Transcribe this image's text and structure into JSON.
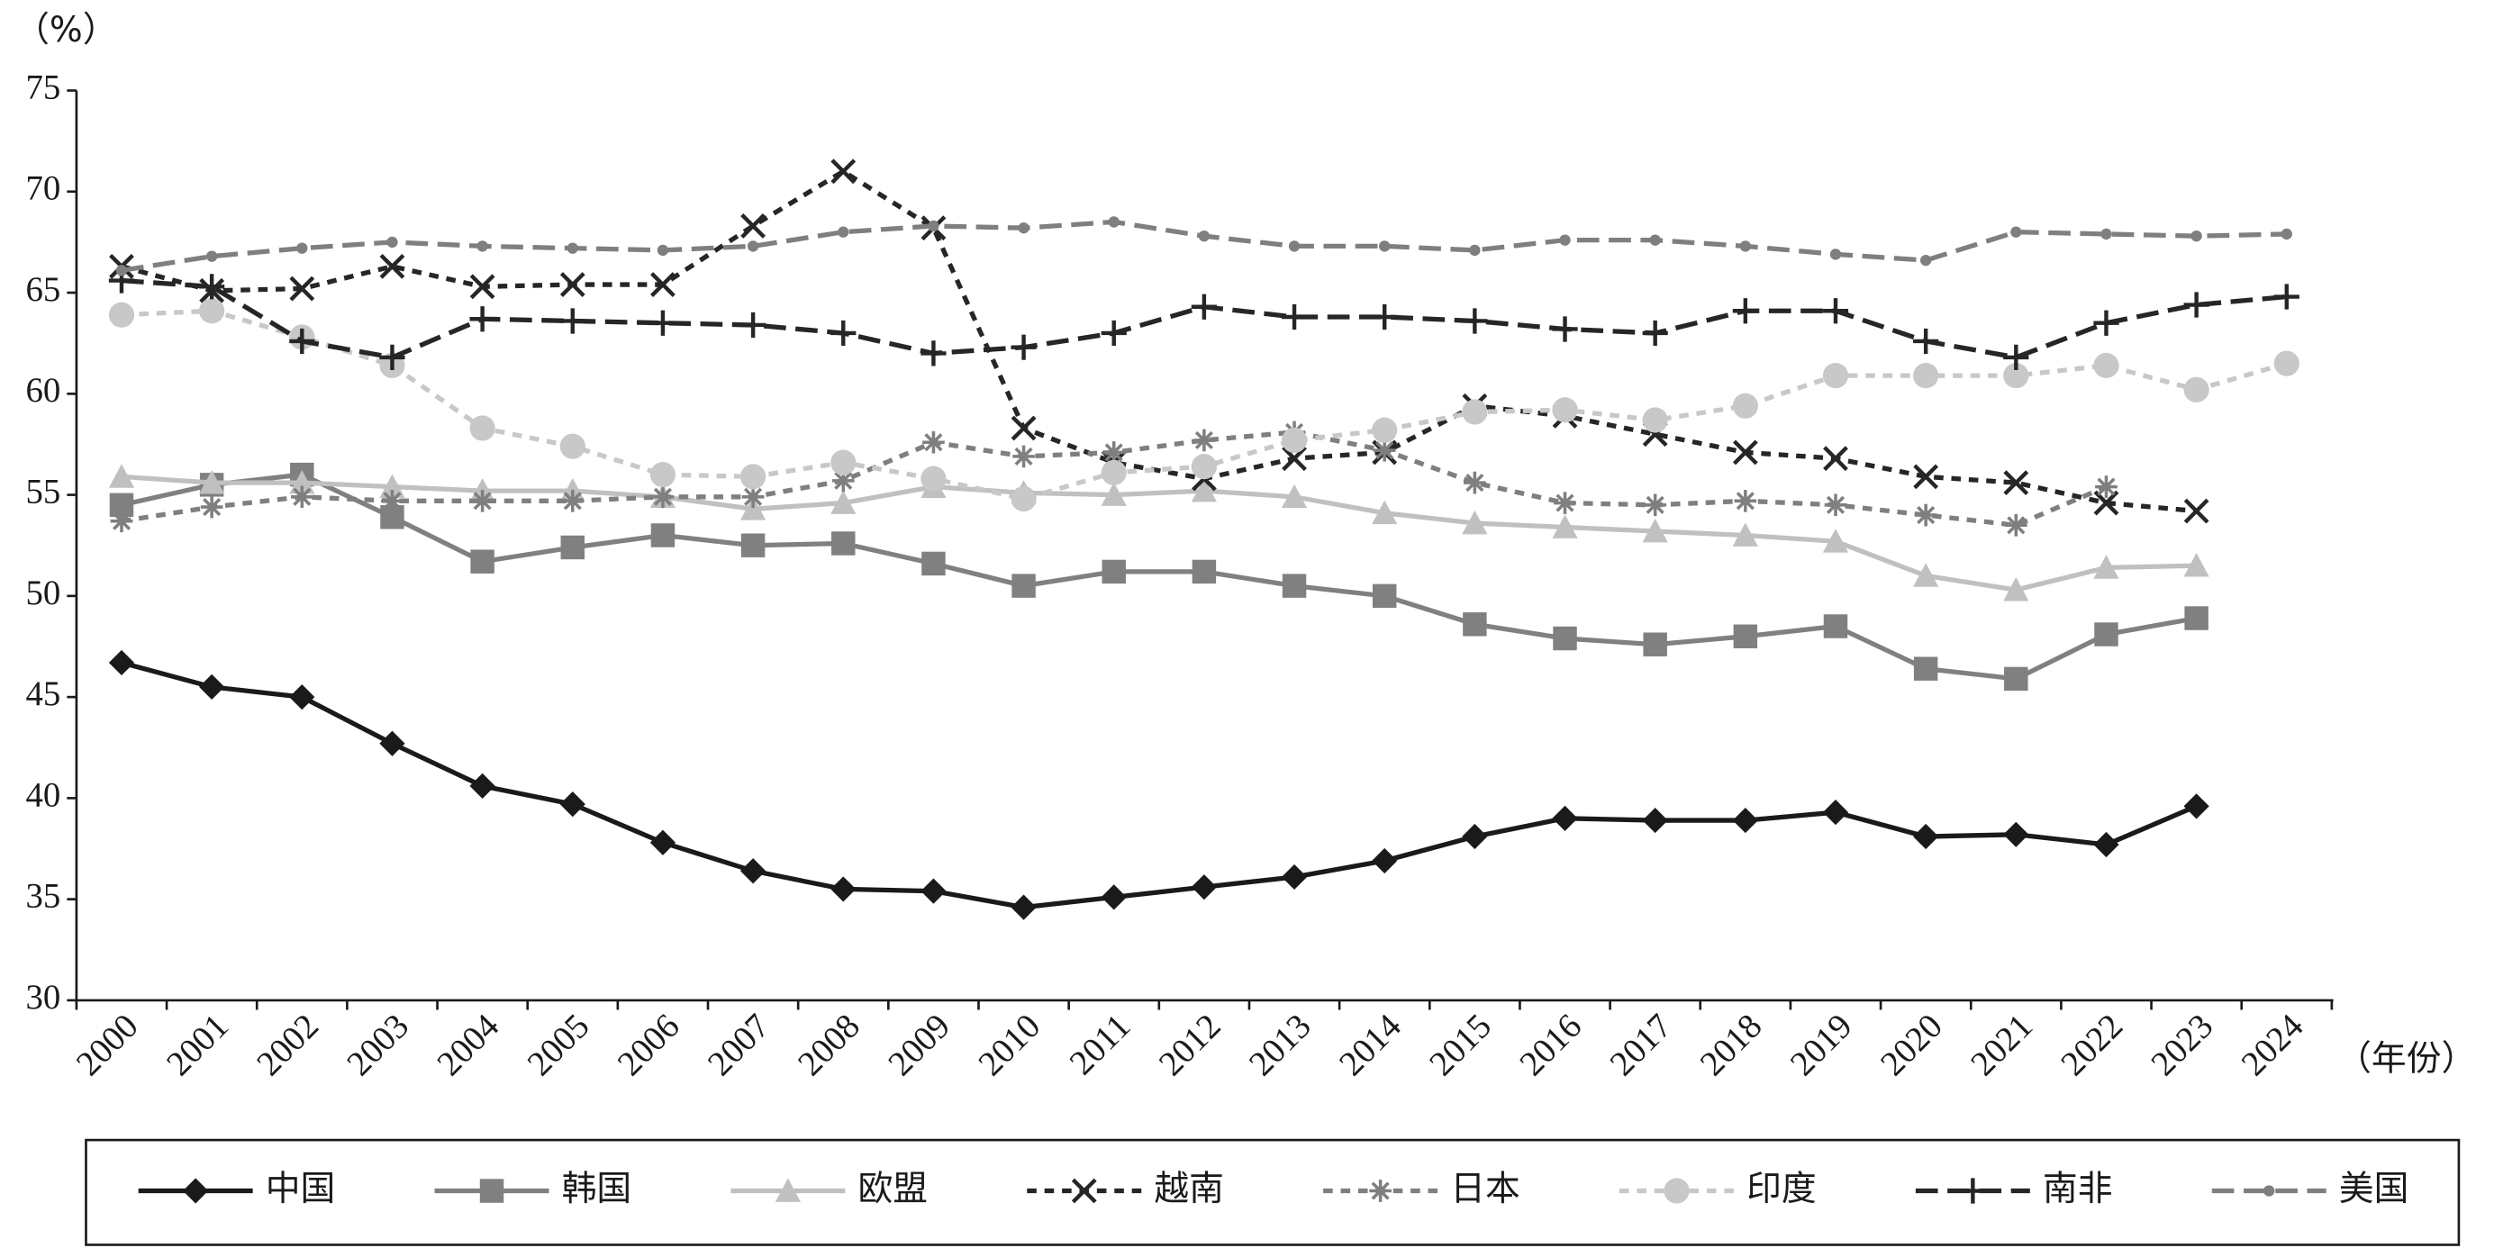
{
  "chart_data": {
    "type": "line",
    "y_label": "（%）",
    "x_label": "（年份）",
    "categories": [
      "2000",
      "2001",
      "2002",
      "2003",
      "2004",
      "2005",
      "2006",
      "2007",
      "2008",
      "2009",
      "2010",
      "2011",
      "2012",
      "2013",
      "2014",
      "2015",
      "2016",
      "2017",
      "2018",
      "2019",
      "2020",
      "2021",
      "2022",
      "2023",
      "2024"
    ],
    "ylim": [
      30,
      75
    ],
    "yticks": [
      30,
      35,
      40,
      45,
      50,
      55,
      60,
      65,
      70,
      75
    ],
    "series": [
      {
        "name": "中国",
        "color": "#1a1a1a",
        "marker": "diamond",
        "dash": "solid",
        "values": [
          46.7,
          45.5,
          45.0,
          42.7,
          40.6,
          39.7,
          37.8,
          36.4,
          35.5,
          35.4,
          34.6,
          35.1,
          35.6,
          36.1,
          36.9,
          38.1,
          39.0,
          38.9,
          38.9,
          39.3,
          38.1,
          38.2,
          37.7,
          39.6,
          null
        ]
      },
      {
        "name": "韩国",
        "color": "#808080",
        "marker": "square",
        "dash": "solid",
        "values": [
          54.5,
          55.5,
          56.0,
          53.9,
          51.7,
          52.4,
          53.0,
          52.5,
          52.6,
          51.6,
          50.5,
          51.2,
          51.2,
          50.5,
          50.0,
          48.6,
          47.9,
          47.6,
          48.0,
          48.5,
          46.4,
          45.9,
          48.1,
          48.9,
          null
        ]
      },
      {
        "name": "欧盟",
        "color": "#c0c0c0",
        "marker": "triangle",
        "dash": "solid",
        "values": [
          55.9,
          55.6,
          55.6,
          55.4,
          55.2,
          55.2,
          54.9,
          54.3,
          54.6,
          55.4,
          55.1,
          55.0,
          55.2,
          54.9,
          54.1,
          53.6,
          53.4,
          53.2,
          53.0,
          52.7,
          51.0,
          50.3,
          51.4,
          51.5,
          null
        ]
      },
      {
        "name": "越南",
        "color": "#262626",
        "marker": "x",
        "dash": "short",
        "values": [
          66.3,
          65.1,
          65.2,
          66.3,
          65.3,
          65.4,
          65.4,
          68.3,
          71.0,
          68.2,
          58.3,
          56.6,
          55.8,
          56.8,
          57.1,
          59.4,
          58.9,
          58.0,
          57.1,
          56.8,
          55.9,
          55.6,
          54.6,
          54.2,
          null
        ]
      },
      {
        "name": "日本",
        "color": "#7f7f7f",
        "marker": "asterisk",
        "dash": "short",
        "values": [
          53.7,
          54.4,
          54.9,
          54.7,
          54.7,
          54.7,
          54.9,
          54.9,
          55.7,
          57.6,
          56.9,
          57.1,
          57.7,
          58.1,
          57.2,
          55.6,
          54.6,
          54.5,
          54.7,
          54.5,
          54.0,
          53.5,
          55.4,
          null,
          null
        ]
      },
      {
        "name": "印度",
        "color": "#c8c8c8",
        "marker": "circle",
        "dash": "short",
        "values": [
          63.9,
          64.1,
          62.8,
          61.4,
          58.3,
          57.4,
          56.0,
          55.9,
          56.6,
          55.8,
          54.8,
          56.1,
          56.4,
          57.7,
          58.2,
          59.1,
          59.2,
          58.7,
          59.4,
          60.9,
          60.9,
          60.9,
          61.4,
          60.2,
          61.5
        ]
      },
      {
        "name": "南非",
        "color": "#262626",
        "marker": "plus",
        "dash": "long",
        "values": [
          65.6,
          65.3,
          62.6,
          61.8,
          63.7,
          63.6,
          63.5,
          63.4,
          63.0,
          62.0,
          62.3,
          63.0,
          64.3,
          63.8,
          63.8,
          63.6,
          63.2,
          63.0,
          64.1,
          64.1,
          62.6,
          61.8,
          63.5,
          64.4,
          64.8
        ]
      },
      {
        "name": "美国",
        "color": "#7f7f7f",
        "marker": "dot",
        "dash": "long",
        "values": [
          66.1,
          66.8,
          67.2,
          67.5,
          67.3,
          67.2,
          67.1,
          67.3,
          68.0,
          68.3,
          68.2,
          68.5,
          67.8,
          67.3,
          67.3,
          67.1,
          67.6,
          67.6,
          67.3,
          66.9,
          66.6,
          68.0,
          67.9,
          67.8,
          67.9
        ]
      }
    ]
  }
}
